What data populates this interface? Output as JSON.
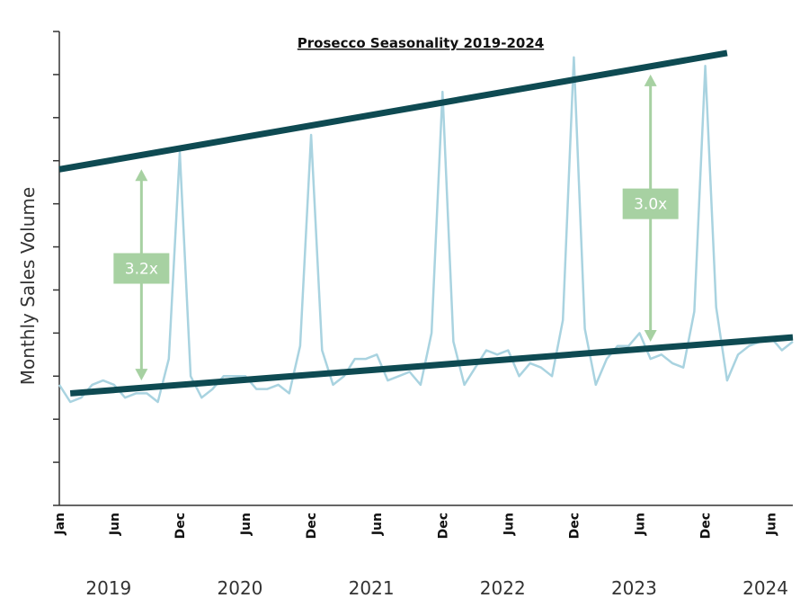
{
  "chart_data": {
    "type": "line",
    "title": "Prosecco Seasonality 2019-2024",
    "xlabel": "",
    "ylabel": "Monthly Sales Volume",
    "ylim": [
      0,
      11
    ],
    "grid": false,
    "month_ticks": [
      {
        "label": "Jan",
        "x": 0
      },
      {
        "label": "Jun",
        "x": 5
      },
      {
        "label": "Dec",
        "x": 11
      },
      {
        "label": "Jun",
        "x": 17
      },
      {
        "label": "Dec",
        "x": 23
      },
      {
        "label": "Jun",
        "x": 29
      },
      {
        "label": "Dec",
        "x": 35
      },
      {
        "label": "Jun",
        "x": 41
      },
      {
        "label": "Dec",
        "x": 47
      },
      {
        "label": "Jun",
        "x": 53
      },
      {
        "label": "Dec",
        "x": 59
      },
      {
        "label": "Jun",
        "x": 65
      }
    ],
    "year_labels": [
      {
        "label": "2019",
        "x": 4.5
      },
      {
        "label": "2020",
        "x": 16.5
      },
      {
        "label": "2021",
        "x": 28.5
      },
      {
        "label": "2022",
        "x": 40.5
      },
      {
        "label": "2023",
        "x": 52.5
      },
      {
        "label": "2024",
        "x": 64.5
      }
    ],
    "x_range": [
      0,
      67
    ],
    "series": [
      {
        "color": "#a9d3e0",
        "values": [
          2.8,
          2.4,
          2.5,
          2.8,
          2.9,
          2.8,
          2.5,
          2.6,
          2.6,
          2.4,
          3.4,
          8.2,
          3.0,
          2.5,
          2.7,
          3.0,
          3.0,
          3.0,
          2.7,
          2.7,
          2.8,
          2.6,
          3.7,
          8.6,
          3.6,
          2.8,
          3.0,
          3.4,
          3.4,
          3.5,
          2.9,
          3.0,
          3.1,
          2.8,
          4.0,
          9.6,
          3.8,
          2.8,
          3.2,
          3.6,
          3.5,
          3.6,
          3.0,
          3.3,
          3.2,
          3.0,
          4.3,
          10.4,
          4.1,
          2.8,
          3.4,
          3.7,
          3.7,
          4.0,
          3.4,
          3.5,
          3.3,
          3.2,
          4.5,
          10.2,
          4.6,
          2.9,
          3.5,
          3.7,
          3.8,
          3.9,
          3.6,
          3.8
        ]
      }
    ],
    "trendlines": [
      {
        "name": "upper",
        "color": "#0e4a52",
        "points": [
          [
            0,
            7.8
          ],
          [
            61,
            10.5
          ]
        ]
      },
      {
        "name": "lower",
        "color": "#0e4a52",
        "points": [
          [
            1,
            2.6
          ],
          [
            67,
            3.9
          ]
        ]
      }
    ],
    "annotations": [
      {
        "label": "3.2x",
        "x": 7.5,
        "y_from": 7.8,
        "y_to": 2.9,
        "label_y": 5.5,
        "color": "#a7d1a2"
      },
      {
        "label": "3.0x",
        "x": 54,
        "y_from": 10.0,
        "y_to": 3.8,
        "label_y": 7.0,
        "color": "#a7d1a2"
      }
    ]
  }
}
